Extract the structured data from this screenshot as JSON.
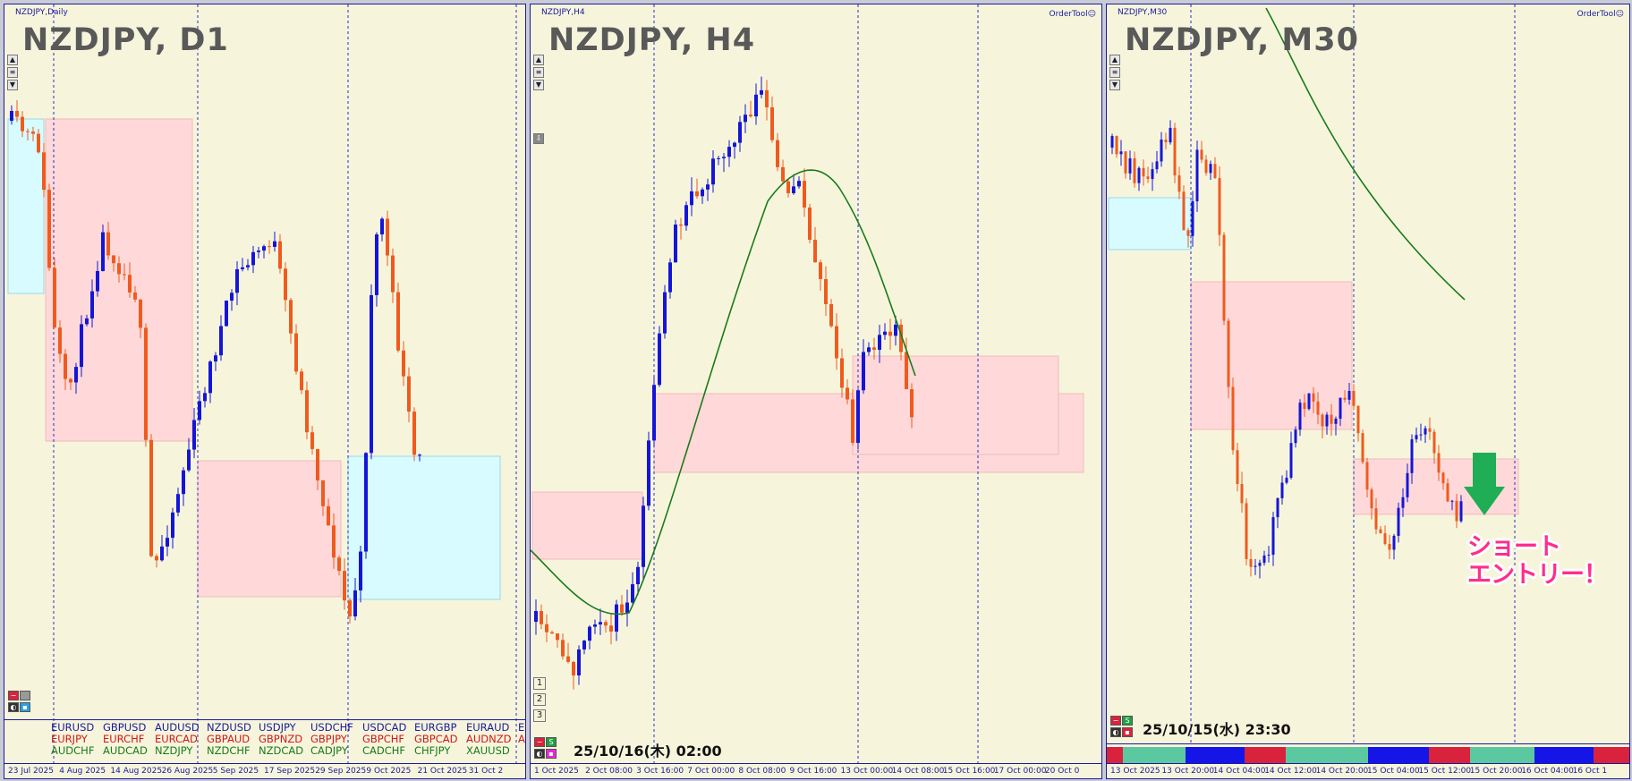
{
  "panels": {
    "d1": {
      "small_title": "NZDJPY,Daily",
      "big_title": "NZDJPY, D1",
      "x_labels": [
        "23 Jul 2025",
        "4 Aug 2025",
        "14 Aug 2025",
        "26 Aug 2025",
        "5 Sep 2025",
        "17 Sep 2025",
        "29 Sep 2025",
        "9 Oct 2025",
        "21 Oct 2025",
        "31 Oct 2"
      ],
      "pairs": {
        "row1": [
          "EURUSD",
          "GBPUSD",
          "AUDUSD",
          "NZDUSD",
          "USDJPY",
          "USDCHF",
          "USDCAD",
          "EURGBP",
          "EURAUD",
          "EURNZD"
        ],
        "row2": [
          "EURJPY",
          "EURCHF",
          "EURCAD",
          "GBPAUD",
          "GBPNZD",
          "GBPJPY",
          "GBPCHF",
          "GBPCAD",
          "AUDNZD",
          "AUDJPY"
        ],
        "row3": [
          "AUDCHF",
          "AUDCAD",
          "NZDJPY",
          "NZDCHF",
          "NZDCAD",
          "CADJPY",
          "CADCHF",
          "CHFJPY",
          "XAUUSD"
        ]
      }
    },
    "h4": {
      "small_title": "NZDJPY,H4",
      "big_title": "NZDJPY, H4",
      "ordertool": "OrderTool☺",
      "timestamp": "25/10/16(木) 02:00",
      "page_buttons": [
        "1",
        "2",
        "3"
      ],
      "x_labels": [
        "1 Oct 2025",
        "2 Oct 08:00",
        "3 Oct 16:00",
        "7 Oct 00:00",
        "8 Oct 08:00",
        "9 Oct 16:00",
        "13 Oct 00:00",
        "14 Oct 08:00",
        "15 Oct 16:00",
        "17 Oct 00:00",
        "20 Oct 0"
      ]
    },
    "m30": {
      "small_title": "NZDJPY,M30",
      "big_title": "NZDJPY, M30",
      "ordertool": "OrderTool☺",
      "timestamp": "25/10/15(水) 23:30",
      "x_labels": [
        "13 Oct 2025",
        "13 Oct 20:00",
        "14 Oct 04:00",
        "14 Oct 12:00",
        "14 Oct 20:00",
        "15 Oct 04:00",
        "15 Oct 12:00",
        "15 Oct 20:00",
        "16 Oct 04:00",
        "16 Oct 1"
      ]
    }
  },
  "annotation": {
    "line1": "ショート",
    "line2": "エントリー！"
  },
  "colors": {
    "bull": "#1515d8",
    "bear": "#f05a1e",
    "ma": "#1a7a1a",
    "supply_zone": "#ffd9d9",
    "demand_zone": "#d7fbff",
    "arrow": "#1fae55",
    "annotation": "#ff2d8c"
  }
}
